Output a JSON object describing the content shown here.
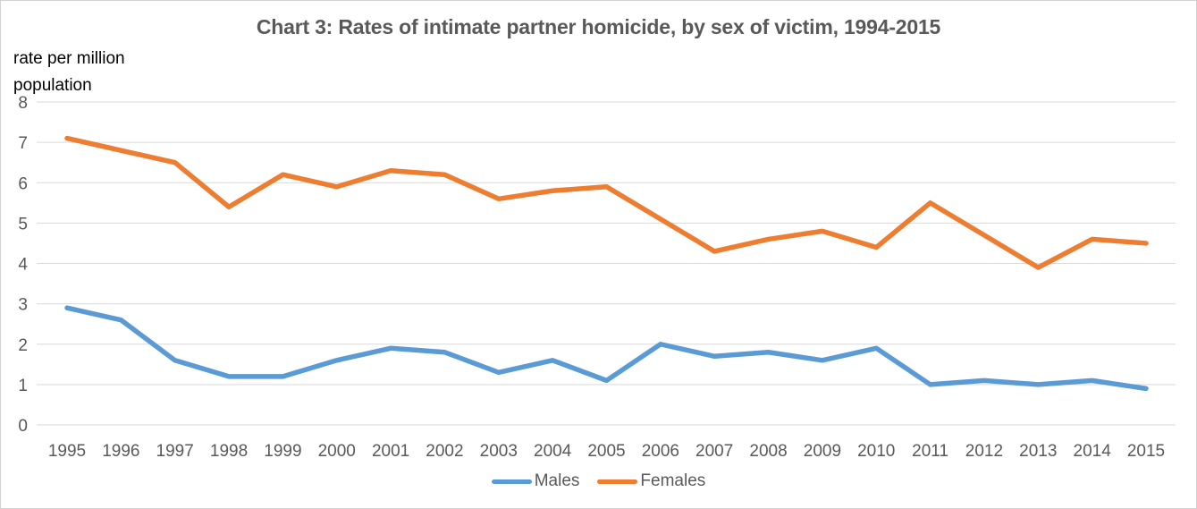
{
  "chart_data": {
    "type": "line",
    "title": "Chart 3: Rates of intimate partner homicide, by sex of victim, 1994-2015",
    "ylabel_lines": [
      "rate per million",
      "population"
    ],
    "xlabel": "",
    "ylim": [
      0,
      8
    ],
    "yticks": [
      0,
      1,
      2,
      3,
      4,
      5,
      6,
      7,
      8
    ],
    "grid": "horizontal",
    "legend_position": "bottom",
    "categories": [
      "1995",
      "1996",
      "1997",
      "1998",
      "1999",
      "2000",
      "2001",
      "2002",
      "2003",
      "2004",
      "2005",
      "2006",
      "2007",
      "2008",
      "2009",
      "2010",
      "2011",
      "2012",
      "2013",
      "2014",
      "2015"
    ],
    "series": [
      {
        "name": "Males",
        "color": "#5B9BD5",
        "values": [
          2.9,
          2.6,
          1.6,
          1.2,
          1.2,
          1.6,
          1.9,
          1.8,
          1.3,
          1.6,
          1.1,
          2.0,
          1.7,
          1.8,
          1.6,
          1.9,
          1.0,
          1.1,
          1.0,
          1.1,
          0.9
        ]
      },
      {
        "name": "Females",
        "color": "#ED7D31",
        "values": [
          7.1,
          6.8,
          6.5,
          5.4,
          6.2,
          5.9,
          6.3,
          6.2,
          5.6,
          5.8,
          5.9,
          5.1,
          4.3,
          4.6,
          4.8,
          4.4,
          5.5,
          4.7,
          3.9,
          4.6,
          4.5
        ]
      }
    ],
    "colors": {
      "title_text": "#595959",
      "tick_text": "#595959",
      "axis_note_text": "#000000",
      "gridline": "#D9D9D9",
      "background": "#FFFFFF"
    }
  }
}
